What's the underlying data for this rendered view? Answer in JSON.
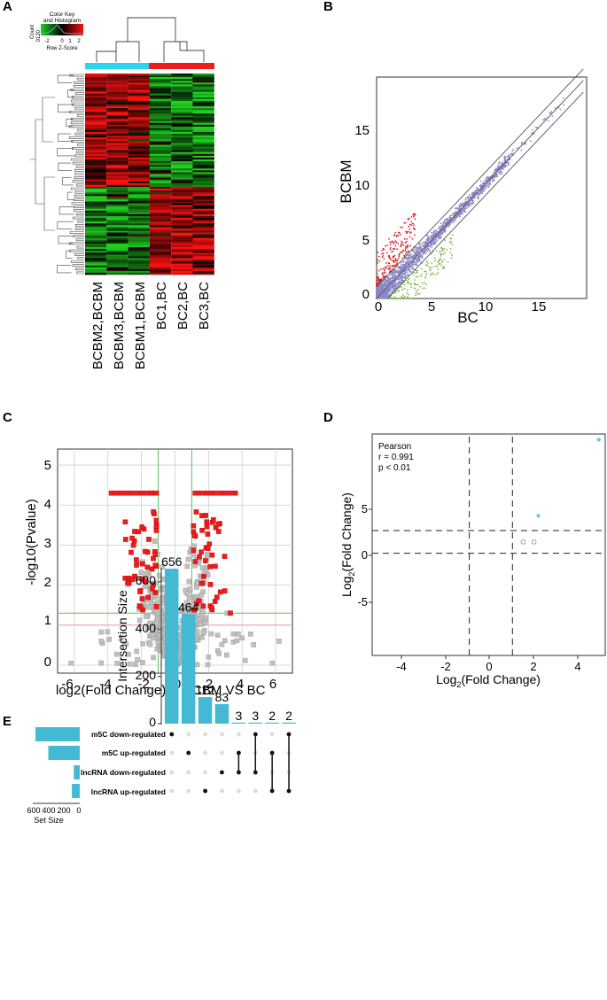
{
  "panels": {
    "A": "A",
    "B": "B",
    "C": "C",
    "D": "D",
    "E": "E"
  },
  "heatmap": {
    "color_key_title_1": "Color Key",
    "color_key_title_2": "and Histogram",
    "count_label": "Count",
    "count_ticks": [
      "0",
      "120"
    ],
    "scale_ticks": [
      "-2",
      "0",
      "1",
      "2"
    ],
    "scale_label": "Row Z-Score",
    "samples": [
      "BCBM2,BCBM",
      "BCBM3,BCBM",
      "BCBM1,BCBM",
      "BC1,BC",
      "BC2,BC",
      "BC3,BC"
    ],
    "group_colors": {
      "BCBM": "#2ad4ef",
      "BC": "#ee1c1c"
    },
    "colors": {
      "low": "#1fd11f",
      "mid": "#000000",
      "high": "#ff1010"
    }
  },
  "scatter": {
    "xlabel": "BC",
    "ylabel": "BCBM",
    "x_ticks": [
      "0",
      "5",
      "10",
      "15"
    ],
    "y_ticks": [
      "0",
      "5",
      "10",
      "15"
    ],
    "colors": {
      "up": "#d8232a",
      "down": "#7ab848",
      "ns": "#8b86c6"
    }
  },
  "volcano": {
    "ylabel": "-log10(Pvalue)",
    "xlabel": "log2(Fold Change)",
    "subtitle": "BCBM VS BC",
    "x_ticks": [
      "-6",
      "-4",
      "-2",
      "0",
      "2",
      "4",
      "6"
    ],
    "y_ticks": [
      "0",
      "1",
      "2",
      "3",
      "4",
      "5"
    ],
    "colors": {
      "sig": "#ee1c1c",
      "ns": "#c0c0c0",
      "thresh_v": "#5cc15c",
      "thresh_h_sig": "#5cc15c",
      "thresh_h": "#e8a0a0"
    }
  },
  "correlation": {
    "legend_title": "Pearson",
    "r_text": "r = 0.991",
    "p_text": "p < 0.01",
    "xlabel_pre": "Log",
    "xlabel_sub": "2",
    "xlabel_post": "(Fold Change)",
    "ylabel_pre": "Log",
    "ylabel_sub": "2",
    "ylabel_post": "(Fold Change)",
    "x_ticks": [
      "-4",
      "-2",
      "0",
      "2",
      "4"
    ],
    "y_ticks": [
      "-5",
      "0",
      "5"
    ],
    "point_color": "#6ec6ea"
  },
  "upset": {
    "ylabel": "Intersection Size",
    "set_size_label": "Set Size",
    "y_ticks": [
      "0",
      "200",
      "400",
      "600"
    ],
    "set_size_ticks": [
      "600",
      "400",
      "200",
      "0"
    ],
    "bar_color": "#44b9d3",
    "sets": [
      "m5C down-regulated",
      "m5C up-regulated",
      "lncRNA down-regulated",
      "lncRNA up-regulated"
    ],
    "bar_labels": [
      "656",
      "464",
      "112",
      "83",
      "3",
      "3",
      "2",
      "2"
    ]
  },
  "chart_data": [
    {
      "type": "heatmap",
      "title": "Color Key and Histogram",
      "xlabel": "",
      "ylabel": "",
      "columns": [
        "BCBM2,BCBM",
        "BCBM3,BCBM",
        "BCBM1,BCBM",
        "BC1,BC",
        "BC2,BC",
        "BC3,BC"
      ],
      "groups": [
        "BCBM",
        "BCBM",
        "BCBM",
        "BC",
        "BC",
        "BC"
      ],
      "colorbar": {
        "label": "Row Z-Score",
        "range": [
          -2,
          2
        ]
      }
    },
    {
      "type": "scatter",
      "xlabel": "BC",
      "ylabel": "BCBM",
      "xlim": [
        0,
        19
      ],
      "ylim": [
        0,
        19
      ],
      "reference_lines": [
        "y = x",
        "y = x + 1",
        "y = x - 1"
      ]
    },
    {
      "type": "scatter",
      "title": "BCBM VS BC",
      "xlabel": "log2(Fold Change)",
      "ylabel": "-log10(Pvalue)",
      "xlim": [
        -7,
        7
      ],
      "ylim": [
        -0.2,
        5.4
      ],
      "thresholds": {
        "fold_change": [
          -1,
          1
        ],
        "pvalue_line": 1.3
      }
    },
    {
      "type": "scatter",
      "title": "Pearson",
      "xlabel": "Log2(Fold Change)",
      "ylabel": "Log2(Fold Change)",
      "xlim": [
        -5.5,
        5.3
      ],
      "ylim": [
        -10,
        9.5
      ],
      "stats": {
        "r": 0.991,
        "p": "< 0.01"
      },
      "points": [
        {
          "x": 5.0,
          "y": 9.0,
          "style": "filled"
        },
        {
          "x": 2.2,
          "y": 2.3,
          "style": "filled"
        },
        {
          "x": 1.5,
          "y": 0.0,
          "style": "open"
        },
        {
          "x": 2.0,
          "y": 0.0,
          "style": "open"
        }
      ],
      "threshold_lines": {
        "x": [
          -1,
          1
        ],
        "y": [
          -1,
          1
        ]
      }
    },
    {
      "type": "bar",
      "title": "",
      "xlabel": "",
      "ylabel": "Intersection Size",
      "ylim": [
        0,
        700
      ],
      "categories": [
        "m5C down-regulated",
        "m5C up-regulated",
        "lncRNA up-regulated",
        "lncRNA down-regulated",
        "m5C up & lncRNA down",
        "m5C down & lncRNA down",
        "m5C up & lncRNA up",
        "m5C down & lncRNA up"
      ],
      "values": [
        656,
        464,
        112,
        83,
        3,
        3,
        2,
        2
      ],
      "memberships": [
        [
          0
        ],
        [
          1
        ],
        [
          3
        ],
        [
          2
        ],
        [
          1,
          2
        ],
        [
          0,
          2
        ],
        [
          1,
          3
        ],
        [
          0,
          3
        ]
      ],
      "set_sizes": {
        "labels": [
          "m5C down-regulated",
          "m5C up-regulated",
          "lncRNA down-regulated",
          "lncRNA up-regulated"
        ],
        "values": [
          661,
          469,
          88,
          117
        ],
        "xlim": [
          0,
          700
        ]
      }
    }
  ]
}
